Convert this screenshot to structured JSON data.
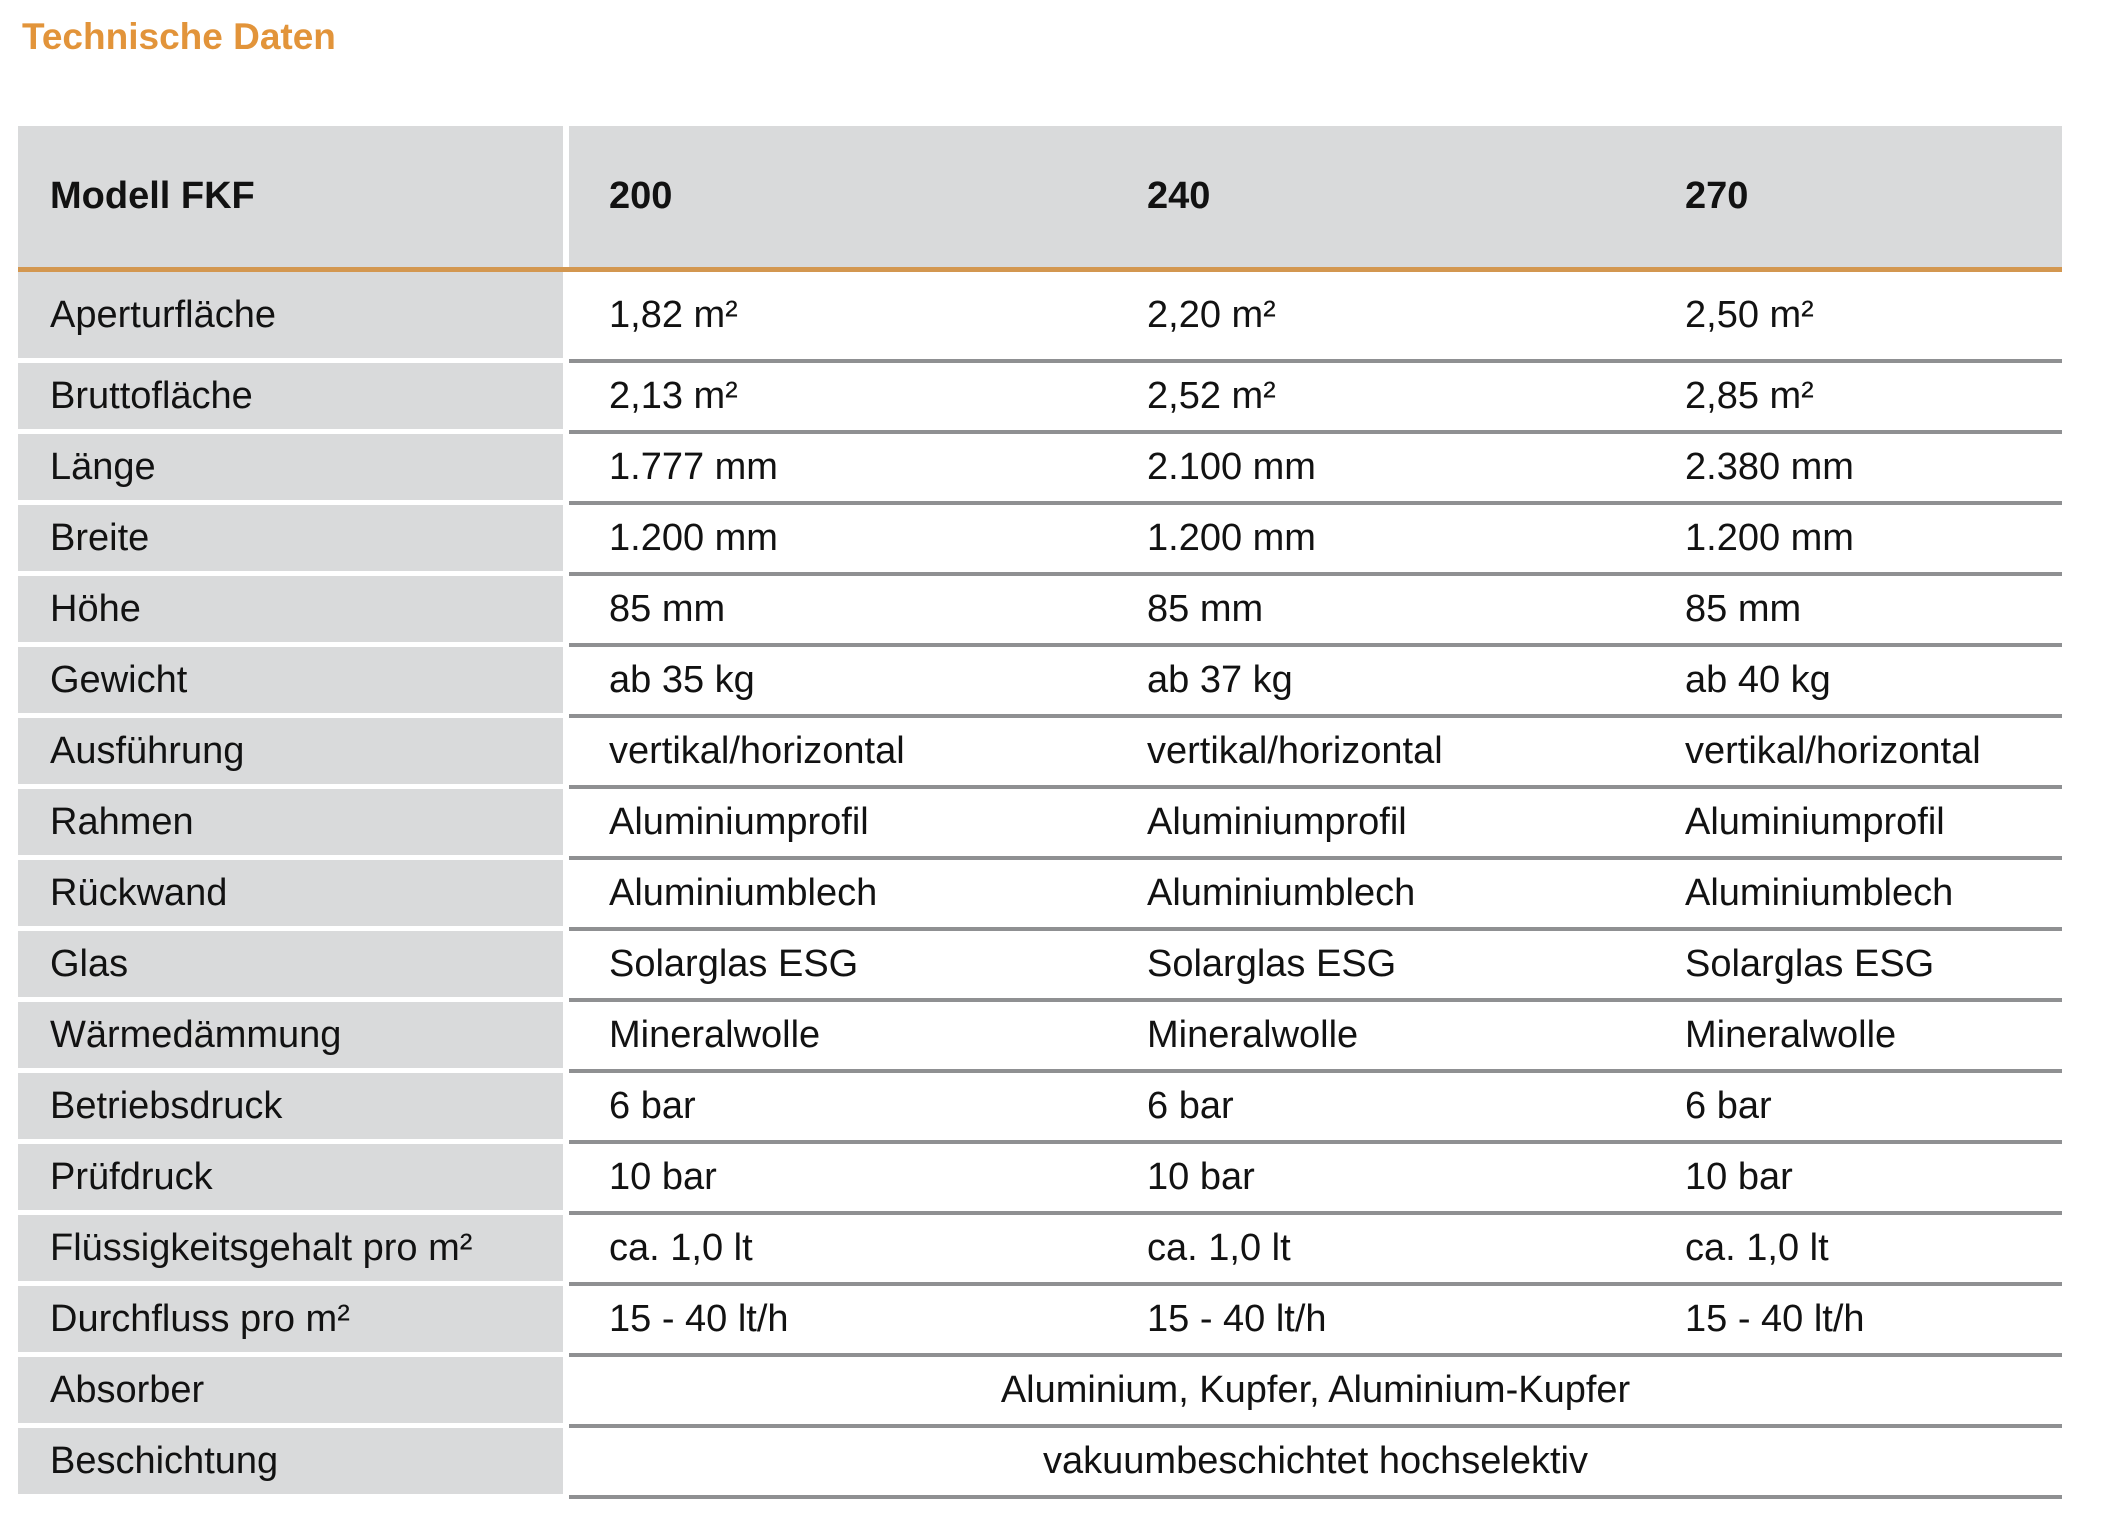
{
  "title": "Technische Daten",
  "colors": {
    "accent_orange": "#E2943A",
    "rule_orange": "#D39750",
    "cell_gray": "#D9DADB",
    "separator_gray": "#8F9092",
    "text": "#121212"
  },
  "table": {
    "header": {
      "label": "Modell FKF",
      "columns": [
        "200",
        "240",
        "270"
      ]
    },
    "rows": [
      {
        "label": "Aperturfläche",
        "values": [
          "1,82 m²",
          "2,20 m²",
          "2,50 m²"
        ]
      },
      {
        "label": "Bruttofläche",
        "values": [
          "2,13 m²",
          "2,52 m²",
          "2,85 m²"
        ]
      },
      {
        "label": "Länge",
        "values": [
          "1.777 mm",
          "2.100 mm",
          "2.380 mm"
        ]
      },
      {
        "label": "Breite",
        "values": [
          "1.200 mm",
          "1.200 mm",
          "1.200 mm"
        ]
      },
      {
        "label": "Höhe",
        "values": [
          "85 mm",
          "85 mm",
          "85 mm"
        ]
      },
      {
        "label": "Gewicht",
        "values": [
          "ab 35 kg",
          "ab 37 kg",
          "ab 40 kg"
        ]
      },
      {
        "label": "Ausführung",
        "values": [
          "vertikal/horizontal",
          "vertikal/horizontal",
          "vertikal/horizontal"
        ]
      },
      {
        "label": "Rahmen",
        "values": [
          "Aluminiumprofil",
          "Aluminiumprofil",
          "Aluminiumprofil"
        ]
      },
      {
        "label": "Rückwand",
        "values": [
          "Aluminiumblech",
          "Aluminiumblech",
          "Aluminiumblech"
        ]
      },
      {
        "label": "Glas",
        "values": [
          "Solarglas ESG",
          "Solarglas ESG",
          "Solarglas ESG"
        ]
      },
      {
        "label": "Wärmedämmung",
        "values": [
          "Mineralwolle",
          "Mineralwolle",
          "Mineralwolle"
        ]
      },
      {
        "label": "Betriebsdruck",
        "values": [
          "6 bar",
          "6 bar",
          "6 bar"
        ]
      },
      {
        "label": "Prüfdruck",
        "values": [
          "10 bar",
          "10 bar",
          "10 bar"
        ]
      },
      {
        "label": "Flüssigkeitsgehalt pro m²",
        "values": [
          "ca. 1,0 lt",
          "ca. 1,0 lt",
          "ca. 1,0 lt"
        ]
      },
      {
        "label": "Durchfluss pro m²",
        "values": [
          "15 - 40 lt/h",
          "15 - 40 lt/h",
          "15 - 40 lt/h"
        ]
      },
      {
        "label": "Absorber",
        "span": "Aluminium, Kupfer, Aluminium-Kupfer"
      },
      {
        "label": "Beschichtung",
        "span": "vakuumbeschichtet hochselektiv"
      }
    ]
  }
}
